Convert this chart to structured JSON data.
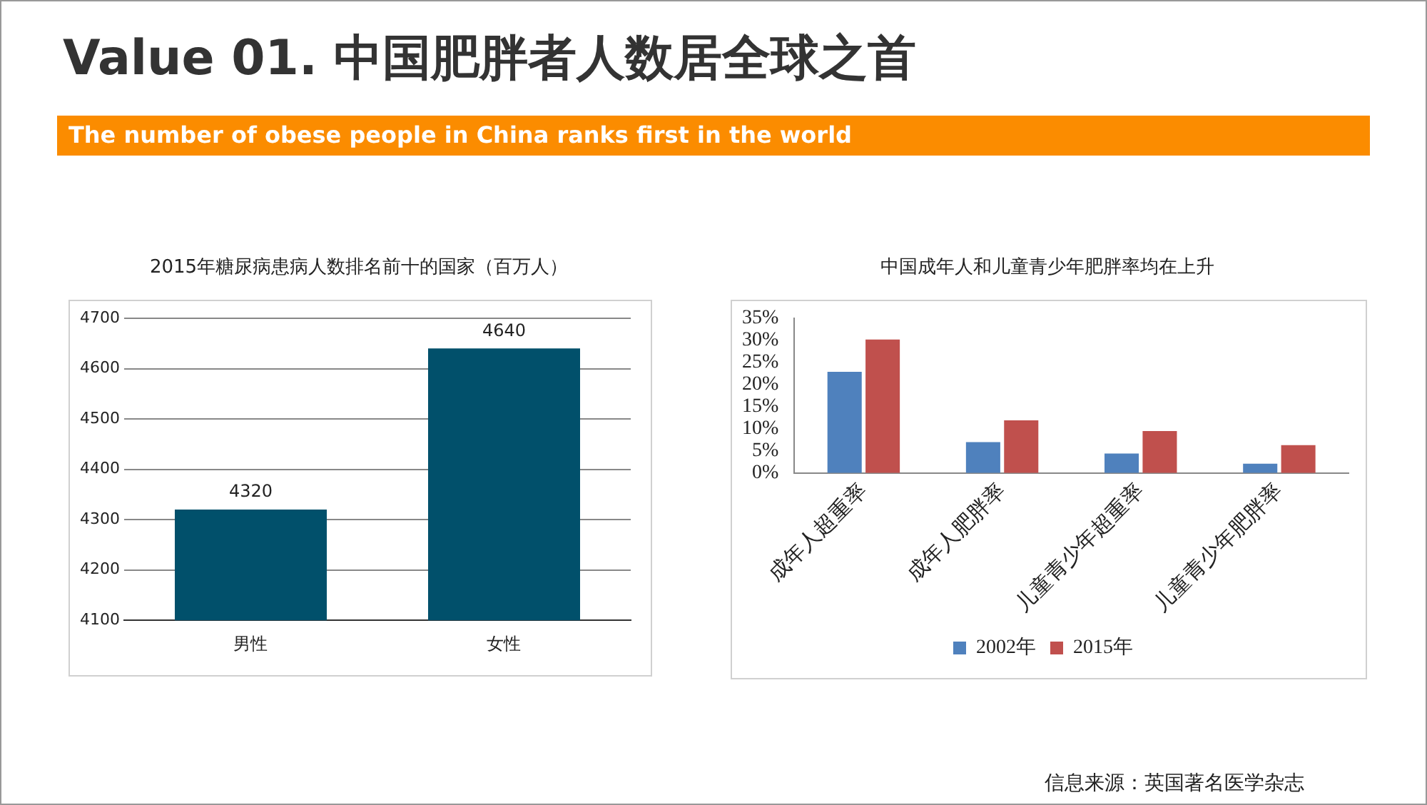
{
  "chart_data": [
    {
      "type": "other",
      "title": "Value 01. 中国肥胖者人数居全球之首",
      "subtitle": "The number of obese people in China ranks first in the world",
      "annotations": [
        "信息来源：英国著名医学杂志"
      ]
    },
    {
      "type": "bar",
      "title": "2015年糖尿病患病人数排名前十的国家（百万人）",
      "categories": [
        "男性",
        "女性"
      ],
      "values": [
        4320,
        4640
      ],
      "color": "#01506b",
      "ylim": [
        4100,
        4700
      ],
      "yticks": [
        4100,
        4200,
        4300,
        4400,
        4500,
        4600,
        4700
      ],
      "grid": "y",
      "data_labels": true,
      "legend": false
    },
    {
      "type": "bar",
      "title": "中国成年人和儿童青少年肥胖率均在上升",
      "categories": [
        "成年人超重率",
        "成年人肥胖率",
        "儿童青少年超重率",
        "儿童青少年肥胖率"
      ],
      "series": [
        {
          "name": "2002年",
          "color": "#4f81bd",
          "values": [
            22.9,
            7.0,
            4.4,
            2.1
          ]
        },
        {
          "name": "2015年",
          "color": "#c0504d",
          "values": [
            30.2,
            11.9,
            9.5,
            6.3
          ]
        }
      ],
      "ylim": [
        0,
        35
      ],
      "yticks": [
        {
          "value": 0,
          "label": "0%"
        },
        {
          "value": 5,
          "label": "5%"
        },
        {
          "value": 10,
          "label": "10%"
        },
        {
          "value": 15,
          "label": "15%"
        },
        {
          "value": 20,
          "label": "20%"
        },
        {
          "value": 25,
          "label": "25%"
        },
        {
          "value": 30,
          "label": "30%"
        },
        {
          "value": 35,
          "label": "35%"
        }
      ],
      "grid": false,
      "legend": "bottom"
    }
  ]
}
